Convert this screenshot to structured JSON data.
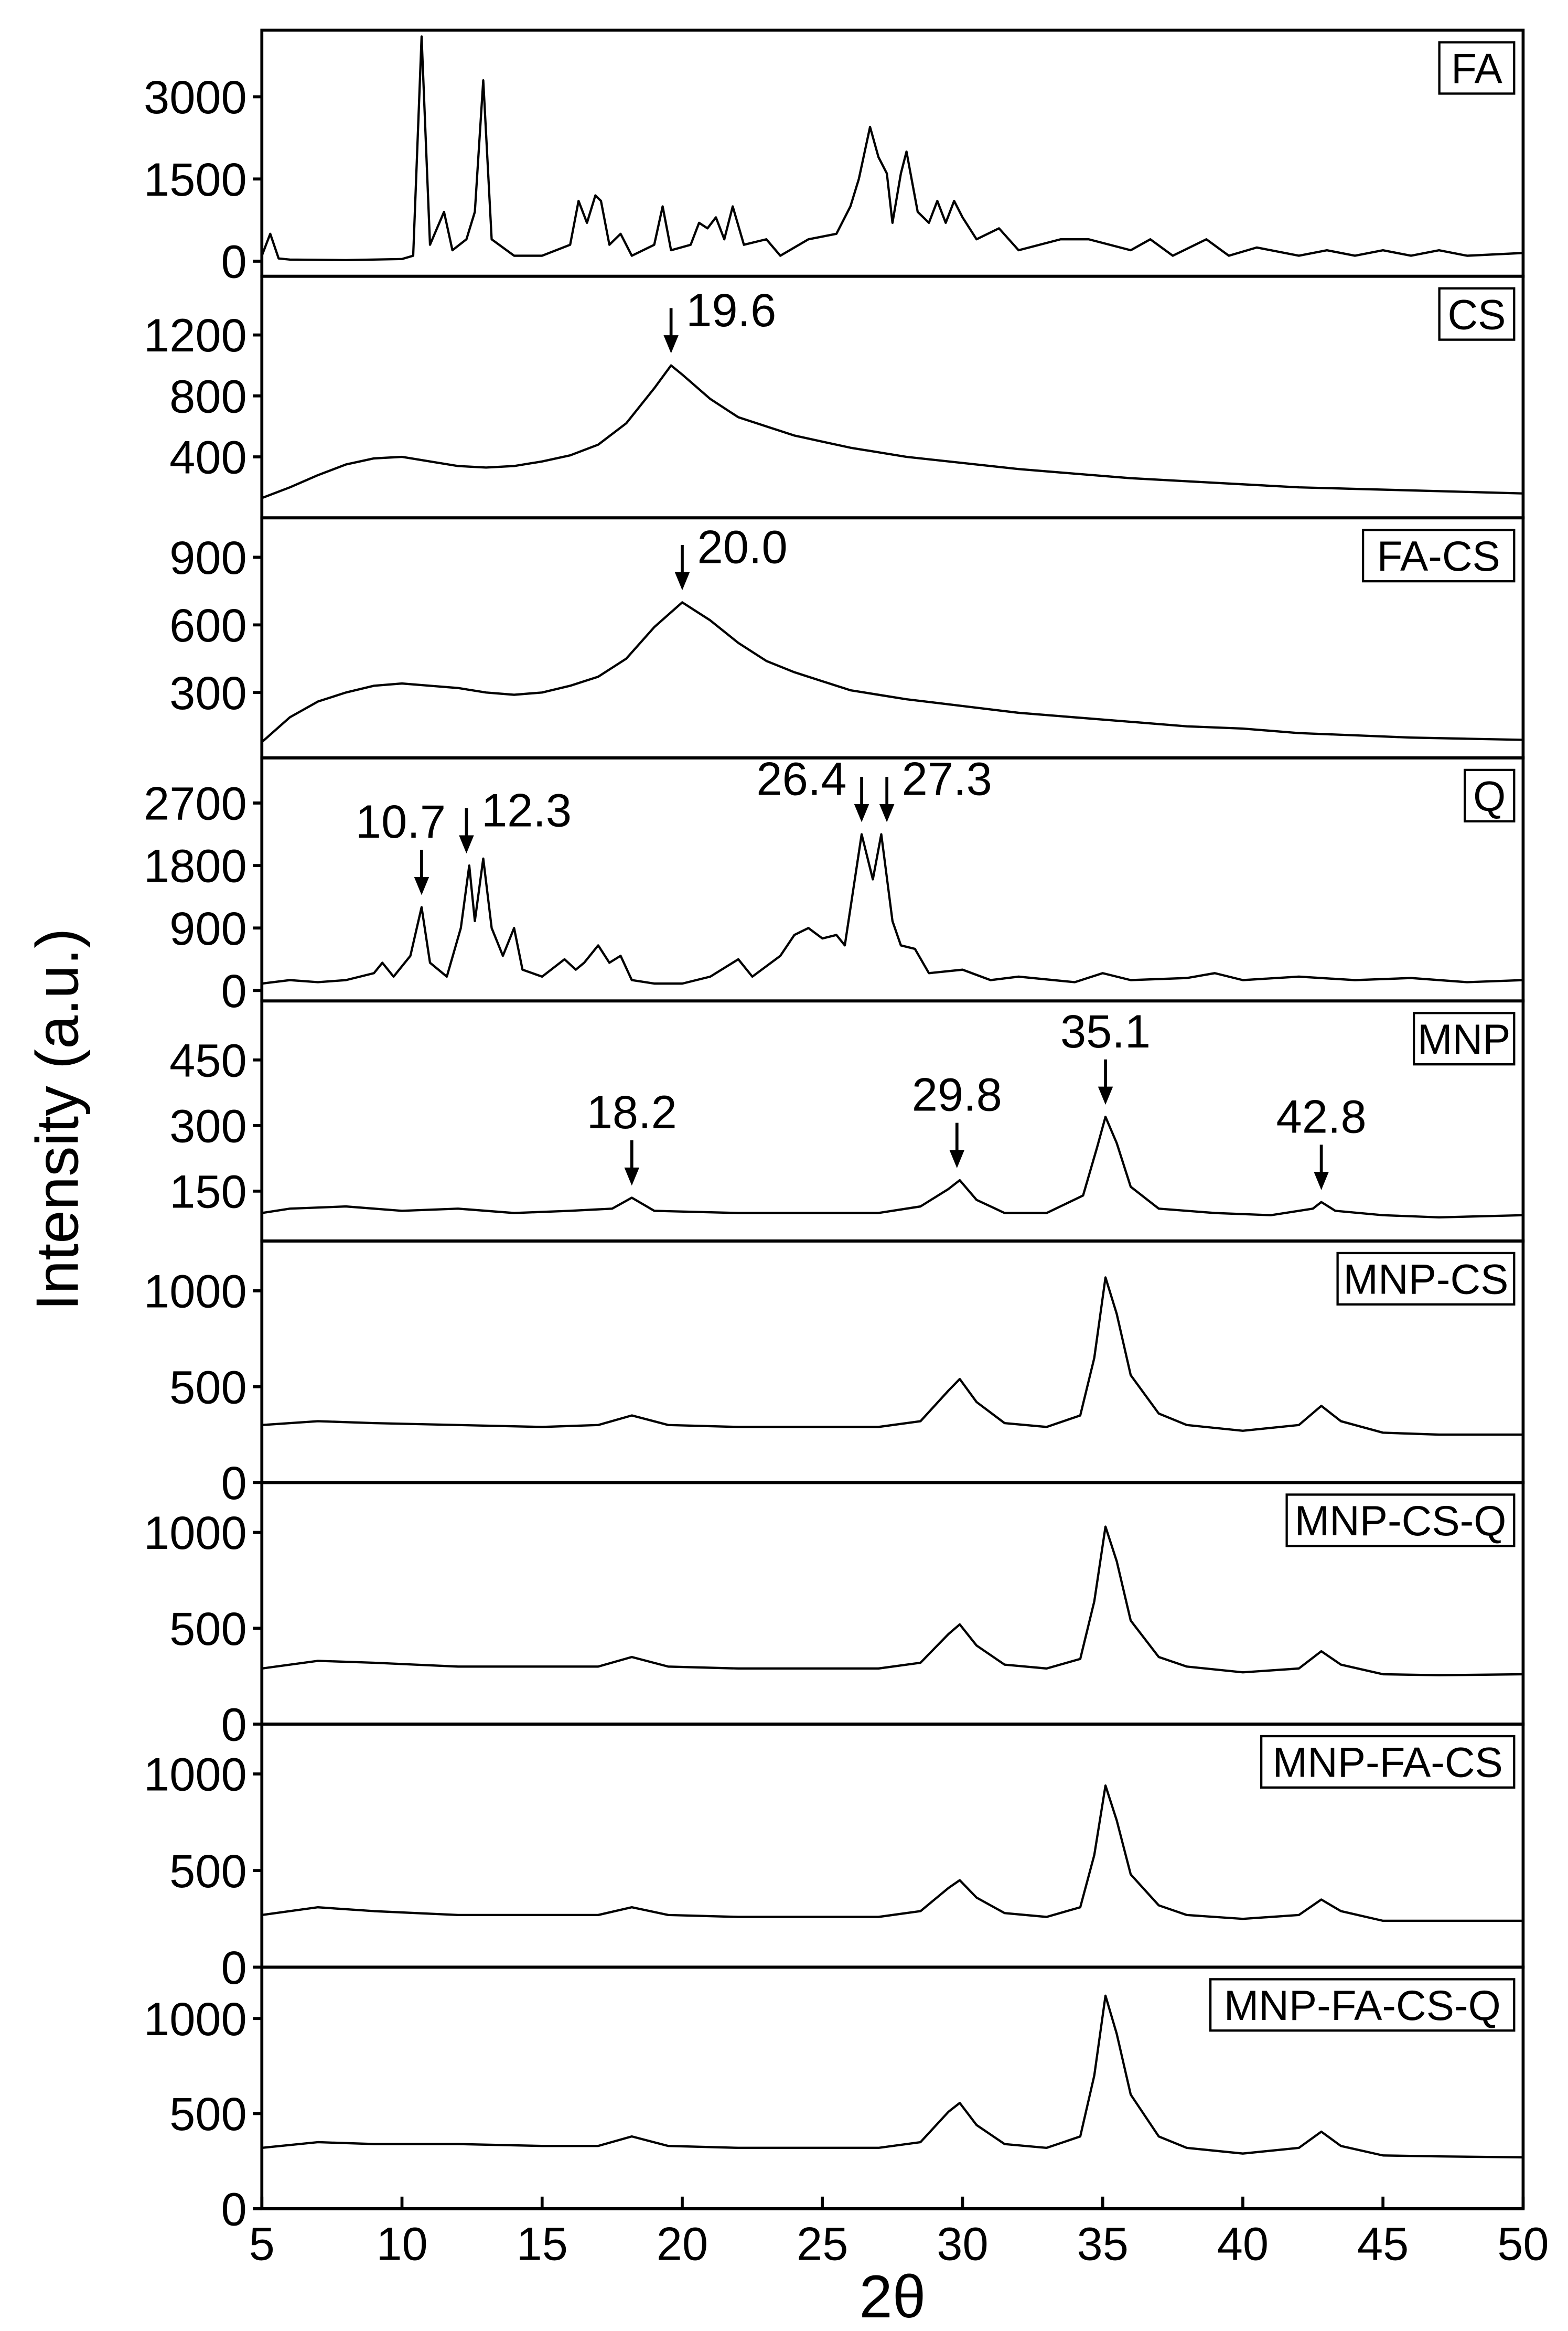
{
  "chart_data": [
    {
      "type": "line",
      "label": "FA",
      "color": "#000000",
      "xlim": [
        5,
        50
      ],
      "ylim": [
        -275,
        4215
      ],
      "yticks": [
        0,
        1500,
        3000
      ],
      "x": [
        5,
        5.3,
        5.6,
        6,
        8,
        10,
        10.4,
        10.7,
        11,
        11.5,
        11.8,
        12.3,
        12.6,
        12.9,
        13.2,
        14,
        15,
        16,
        16.3,
        16.6,
        16.9,
        17.1,
        17.4,
        17.8,
        18.2,
        19,
        19.3,
        19.6,
        20.3,
        20.6,
        20.9,
        21.2,
        21.5,
        21.8,
        22.2,
        23,
        23.5,
        24.5,
        25.5,
        26,
        26.3,
        26.7,
        27,
        27.3,
        27.5,
        27.8,
        28,
        28.4,
        28.8,
        29.1,
        29.4,
        29.7,
        30,
        30.5,
        31.3,
        32,
        33.5,
        34.5,
        36,
        36.7,
        37.5,
        38.7,
        39.5,
        40.5,
        42,
        43,
        44,
        45,
        46,
        47,
        48,
        50
      ],
      "values": [
        100,
        500,
        50,
        30,
        20,
        40,
        100,
        4100,
        300,
        900,
        200,
        400,
        900,
        3300,
        400,
        100,
        100,
        300,
        1100,
        700,
        1200,
        1100,
        300,
        500,
        100,
        300,
        1000,
        200,
        300,
        700,
        600,
        800,
        400,
        1000,
        300,
        400,
        100,
        400,
        500,
        1000,
        1500,
        2450,
        1900,
        1600,
        700,
        1600,
        2000,
        900,
        700,
        1100,
        700,
        1100,
        800,
        400,
        600,
        200,
        400,
        400,
        200,
        400,
        100,
        400,
        100,
        250,
        100,
        200,
        100,
        200,
        100,
        200,
        100,
        150
      ]
    },
    {
      "type": "line",
      "label": "CS",
      "color": "#000000",
      "xlim": [
        5,
        50
      ],
      "ylim": [
        0,
        1585
      ],
      "yticks": [
        400,
        800,
        1200
      ],
      "annotations": [
        {
          "label": "19.6",
          "x": 19.6
        }
      ],
      "x": [
        5,
        6,
        7,
        8,
        9,
        10,
        11,
        12,
        13,
        14,
        15,
        16,
        17,
        18,
        19,
        19.6,
        20,
        21,
        22,
        23,
        24,
        25,
        26,
        27,
        28,
        30,
        32,
        34,
        36,
        38,
        40,
        42,
        44,
        46,
        48,
        50
      ],
      "values": [
        130,
        200,
        280,
        350,
        390,
        400,
        370,
        340,
        330,
        340,
        370,
        410,
        480,
        620,
        850,
        1000,
        940,
        780,
        660,
        600,
        540,
        500,
        460,
        430,
        400,
        360,
        320,
        290,
        260,
        240,
        220,
        200,
        190,
        180,
        170,
        160
      ]
    },
    {
      "type": "line",
      "label": "FA-CS",
      "color": "#000000",
      "xlim": [
        5,
        50
      ],
      "ylim": [
        10,
        1075
      ],
      "yticks": [
        300,
        600,
        900
      ],
      "annotations": [
        {
          "label": "20.0",
          "x": 20.0
        }
      ],
      "x": [
        5,
        6,
        7,
        8,
        9,
        10,
        11,
        12,
        13,
        14,
        15,
        16,
        17,
        18,
        19,
        20,
        21,
        22,
        23,
        24,
        25,
        26,
        27,
        28,
        30,
        32,
        34,
        36,
        38,
        40,
        42,
        44,
        46,
        48,
        50
      ],
      "values": [
        80,
        190,
        260,
        300,
        330,
        340,
        330,
        320,
        300,
        290,
        300,
        330,
        370,
        450,
        590,
        700,
        620,
        520,
        440,
        390,
        350,
        310,
        290,
        270,
        240,
        210,
        190,
        170,
        150,
        140,
        120,
        110,
        100,
        95,
        90
      ]
    },
    {
      "type": "line",
      "label": "Q",
      "color": "#000000",
      "xlim": [
        5,
        50
      ],
      "ylim": [
        -150,
        3350
      ],
      "yticks": [
        0,
        900,
        1800,
        2700
      ],
      "annotations": [
        {
          "label": "10.7",
          "x": 10.7
        },
        {
          "label": "12.3",
          "x": 12.3
        },
        {
          "label": "26.4",
          "x": 26.4
        },
        {
          "label": "27.3",
          "x": 27.3
        }
      ],
      "x": [
        5,
        6,
        7,
        8,
        9,
        9.3,
        9.7,
        10.3,
        10.7,
        11,
        11.6,
        12.1,
        12.4,
        12.6,
        12.9,
        13.2,
        13.6,
        14,
        14.3,
        15,
        15.8,
        16.2,
        16.5,
        17,
        17.4,
        17.8,
        18.2,
        19,
        20,
        21,
        22,
        22.5,
        23.5,
        24,
        24.5,
        25,
        25.5,
        25.8,
        26.4,
        26.8,
        27.1,
        27.5,
        27.8,
        28.3,
        28.8,
        30,
        31,
        32,
        34,
        35,
        36,
        38,
        39,
        40,
        42,
        44,
        46,
        48,
        50
      ],
      "values": [
        100,
        150,
        120,
        150,
        250,
        400,
        200,
        500,
        1200,
        400,
        200,
        900,
        1800,
        1000,
        1900,
        900,
        500,
        900,
        300,
        200,
        450,
        300,
        400,
        650,
        400,
        500,
        150,
        100,
        100,
        200,
        450,
        200,
        500,
        800,
        900,
        750,
        800,
        650,
        2250,
        1600,
        2250,
        1000,
        650,
        600,
        250,
        300,
        150,
        200,
        120,
        250,
        150,
        180,
        250,
        150,
        200,
        150,
        180,
        120,
        150
      ]
    },
    {
      "type": "line",
      "label": "MNP",
      "color": "#000000",
      "xlim": [
        5,
        50
      ],
      "ylim": [
        36,
        585
      ],
      "yticks": [
        150,
        300,
        450
      ],
      "annotations": [
        {
          "label": "18.2",
          "x": 18.2
        },
        {
          "label": "29.8",
          "x": 29.8
        },
        {
          "label": "35.1",
          "x": 35.1
        },
        {
          "label": "42.8",
          "x": 42.8
        }
      ],
      "x": [
        5,
        6,
        8,
        10,
        12,
        14,
        16,
        17.5,
        18.2,
        19,
        22,
        25,
        27,
        28.5,
        29.5,
        29.9,
        30.5,
        31.5,
        33,
        34.3,
        34.8,
        35.1,
        35.5,
        36,
        37,
        39,
        41,
        42.5,
        42.8,
        43.3,
        45,
        47,
        50
      ],
      "values": [
        100,
        110,
        115,
        105,
        110,
        100,
        105,
        110,
        135,
        105,
        100,
        100,
        100,
        115,
        155,
        175,
        130,
        100,
        100,
        140,
        250,
        320,
        260,
        160,
        110,
        100,
        95,
        110,
        125,
        105,
        95,
        90,
        95
      ]
    },
    {
      "type": "line",
      "label": "MNP-CS",
      "color": "#000000",
      "xlim": [
        5,
        50
      ],
      "ylim": [
        0,
        1260
      ],
      "yticks": [
        0,
        500,
        1000
      ],
      "x": [
        5,
        7,
        9,
        12,
        15,
        17,
        18.2,
        19.5,
        22,
        25,
        27,
        28.5,
        29.5,
        29.9,
        30.5,
        31.5,
        33,
        34.2,
        34.7,
        35.1,
        35.5,
        36,
        37,
        38,
        40,
        42,
        42.8,
        43.5,
        45,
        47,
        50
      ],
      "values": [
        300,
        320,
        310,
        300,
        290,
        300,
        350,
        300,
        290,
        290,
        290,
        320,
        480,
        540,
        420,
        310,
        290,
        350,
        650,
        1070,
        880,
        560,
        360,
        300,
        270,
        300,
        400,
        320,
        260,
        250,
        250
      ]
    },
    {
      "type": "line",
      "label": "MNP-CS-Q",
      "color": "#000000",
      "xlim": [
        5,
        50
      ],
      "ylim": [
        0,
        1260
      ],
      "yticks": [
        0,
        500,
        1000
      ],
      "x": [
        5,
        7,
        9,
        12,
        15,
        17,
        18.2,
        19.5,
        22,
        25,
        27,
        28.5,
        29.5,
        29.9,
        30.5,
        31.5,
        33,
        34.2,
        34.7,
        35.1,
        35.5,
        36,
        37,
        38,
        40,
        42,
        42.8,
        43.5,
        45,
        47,
        50
      ],
      "values": [
        290,
        330,
        320,
        300,
        300,
        300,
        350,
        300,
        290,
        290,
        290,
        320,
        470,
        520,
        410,
        310,
        290,
        340,
        640,
        1030,
        850,
        540,
        350,
        300,
        270,
        290,
        380,
        310,
        260,
        255,
        260
      ]
    },
    {
      "type": "line",
      "label": "MNP-FA-CS",
      "color": "#000000",
      "xlim": [
        5,
        50
      ],
      "ylim": [
        0,
        1258
      ],
      "yticks": [
        0,
        500,
        1000
      ],
      "x": [
        5,
        7,
        9,
        12,
        15,
        17,
        18.2,
        19.5,
        22,
        25,
        27,
        28.5,
        29.5,
        29.9,
        30.5,
        31.5,
        33,
        34.2,
        34.7,
        35.1,
        35.5,
        36,
        37,
        38,
        40,
        42,
        42.8,
        43.5,
        45,
        47,
        50
      ],
      "values": [
        270,
        310,
        290,
        270,
        270,
        270,
        310,
        270,
        260,
        260,
        260,
        290,
        410,
        450,
        360,
        280,
        260,
        310,
        580,
        940,
        760,
        480,
        320,
        270,
        250,
        270,
        350,
        290,
        240,
        240,
        240
      ]
    },
    {
      "type": "line",
      "label": "MNP-FA-CS-Q",
      "color": "#000000",
      "xlim": [
        5,
        50
      ],
      "ylim": [
        0,
        1270
      ],
      "yticks": [
        0,
        500,
        1000
      ],
      "xticks": [
        5,
        10,
        15,
        20,
        25,
        30,
        35,
        40,
        45,
        50
      ],
      "xlabel": "2θ",
      "ylabel": "Intensity (a.u.)",
      "x": [
        5,
        7,
        9,
        12,
        15,
        17,
        18.2,
        19.5,
        22,
        25,
        27,
        28.5,
        29.5,
        29.9,
        30.5,
        31.5,
        33,
        34.2,
        34.7,
        35.1,
        35.5,
        36,
        37,
        38,
        40,
        42,
        42.8,
        43.5,
        45,
        47,
        50
      ],
      "values": [
        320,
        350,
        340,
        340,
        330,
        330,
        380,
        330,
        320,
        320,
        320,
        350,
        510,
        556,
        440,
        340,
        320,
        380,
        700,
        1120,
        920,
        600,
        380,
        320,
        290,
        320,
        405,
        330,
        280,
        275,
        270
      ]
    }
  ]
}
